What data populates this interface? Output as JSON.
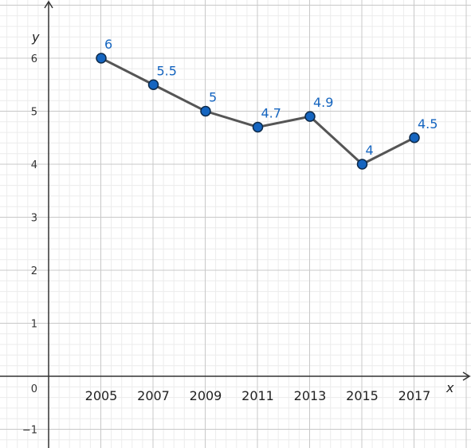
{
  "chart_data": {
    "type": "line",
    "xlabel": "x",
    "ylabel": "y",
    "x": [
      "2005",
      "2007",
      "2009",
      "2011",
      "2013",
      "2015",
      "2017"
    ],
    "series": [
      {
        "values": [
          6,
          5.5,
          5,
          4.7,
          4.9,
          4,
          4.5
        ]
      }
    ],
    "data_labels": [
      "6",
      "5.5",
      "5",
      "4.7",
      "4.9",
      "4",
      "4.5"
    ],
    "y_ticks": [
      "−1",
      "0",
      "1",
      "2",
      "3",
      "4",
      "5",
      "6"
    ],
    "ylim": [
      -1.35,
      7
    ],
    "grid": true,
    "colors": {
      "line": "#555555",
      "marker_fill": "#1565c0",
      "marker_stroke": "#0d2a4a",
      "label": "#1565c0",
      "grid_major": "#c8c8c8",
      "grid_minor": "#ececec",
      "axis": "#333333"
    }
  }
}
